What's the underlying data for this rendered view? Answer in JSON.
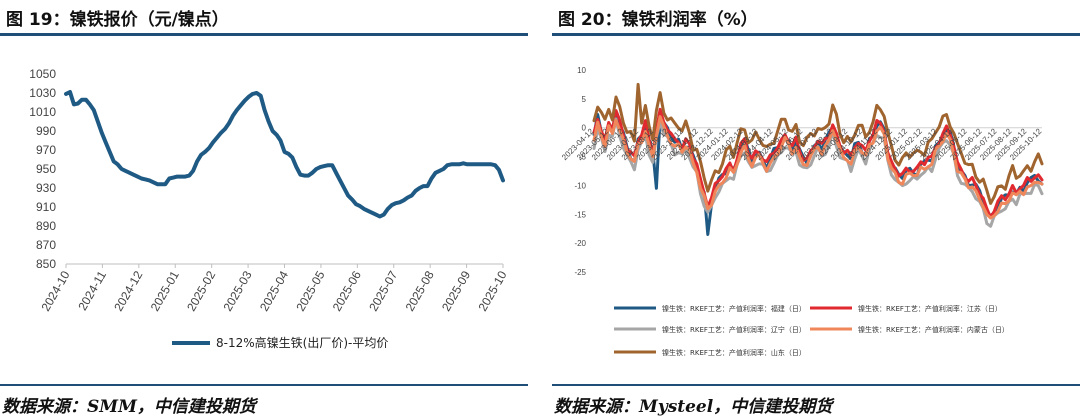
{
  "left": {
    "title": "图 19：镍铁报价（元/镍点）",
    "source": "数据来源：SMM，中信建投期货",
    "chart_data": {
      "type": "line",
      "ylim": [
        850,
        1050
      ],
      "yticks": [
        "1050",
        "1030",
        "1010",
        "990",
        "970",
        "950",
        "930",
        "910",
        "890",
        "870",
        "850"
      ],
      "xticks": [
        "2024-10",
        "2024-11",
        "2024-12",
        "2025-01",
        "2025-02",
        "2025-03",
        "2025-04",
        "2025-05",
        "2025-06",
        "2025-07",
        "2025-08",
        "2025-09",
        "2025-10"
      ],
      "series": [
        {
          "name": "8-12%高镍生铁(出厂价)-平均价",
          "color": "#1f5a85",
          "values": [
            1029,
            1031,
            1018,
            1019,
            1023,
            1023,
            1018,
            1012,
            1000,
            988,
            978,
            968,
            958,
            955,
            950,
            948,
            946,
            944,
            942,
            940,
            939,
            938,
            936,
            934,
            934,
            934,
            940,
            941,
            942,
            942,
            942,
            943,
            948,
            958,
            965,
            968,
            972,
            978,
            983,
            988,
            992,
            998,
            1006,
            1012,
            1017,
            1022,
            1026,
            1029,
            1030,
            1027,
            1012,
            1000,
            990,
            986,
            980,
            968,
            966,
            962,
            952,
            944,
            943,
            943,
            946,
            950,
            952,
            953,
            954,
            954,
            946,
            938,
            930,
            922,
            918,
            913,
            911,
            908,
            906,
            904,
            902,
            900,
            902,
            908,
            912,
            914,
            915,
            917,
            920,
            922,
            927,
            930,
            932,
            932,
            940,
            946,
            948,
            950,
            954,
            955,
            955,
            955,
            956,
            955,
            955,
            955,
            955,
            955,
            955,
            955,
            954,
            949,
            938
          ]
        }
      ]
    }
  },
  "right": {
    "title": "图 20：镍铁利润率（%）",
    "source": "数据来源：Mysteel，中信建投期货",
    "chart_data": {
      "type": "line",
      "ylim": [
        -25,
        10
      ],
      "yticks": [
        "10",
        "5",
        "0",
        "-5",
        "-10",
        "-15",
        "-20",
        "-25"
      ],
      "xticks": [
        "2023-04-12",
        "2023-05-12",
        "2023-06-12",
        "2023-07-12",
        "2023-08-12",
        "2023-09-12",
        "2023-10-12",
        "2023-11-12",
        "2023-12-12",
        "2024-01-12",
        "2024-02-12",
        "2024-03-12",
        "2024-04-12",
        "2024-05-12",
        "2024-06-12",
        "2024-07-12",
        "2024-08-12",
        "2024-09-12",
        "2024-10-12",
        "2024-11-12",
        "2024-12-12",
        "2025-01-12",
        "2025-02-12",
        "2025-03-12",
        "2025-04-12",
        "2025-05-12",
        "2025-06-12",
        "2025-07-12",
        "2025-08-12",
        "2025-09-12",
        "2025-10-12"
      ],
      "base_curve": [
        0,
        3,
        1,
        -1,
        2,
        1,
        4,
        2,
        0,
        -2,
        -3,
        -4,
        -1,
        0,
        2,
        -1,
        -3,
        1,
        4,
        2,
        1,
        0,
        -1,
        -1,
        -2,
        -1,
        -2,
        -4,
        -5,
        -8,
        -10,
        -12,
        -11,
        -9,
        -8,
        -7,
        -6,
        -5,
        -6,
        -4,
        -2,
        -1,
        -3,
        -4,
        -3,
        -3,
        -4,
        -5,
        -4,
        -3,
        -2,
        -1,
        0,
        -1,
        -2,
        -1,
        -3,
        -4,
        -4,
        -3,
        -2,
        -1,
        -2,
        -1,
        0,
        2,
        0,
        -2,
        -3,
        -3,
        -4,
        -2,
        -1,
        -2,
        -3,
        -1,
        0,
        2,
        2,
        1,
        -3,
        -5,
        -6,
        -7,
        -7,
        -6,
        -6,
        -6,
        -6,
        -5,
        -5,
        -4,
        -4,
        -2,
        -1,
        0,
        1,
        0,
        -2,
        -5,
        -6,
        -7,
        -8,
        -8,
        -9,
        -10,
        -11,
        -13,
        -14,
        -13,
        -12,
        -11,
        -11,
        -10,
        -9,
        -10,
        -9,
        -9,
        -8,
        -8,
        -7,
        -7,
        -8
      ],
      "series": [
        {
          "name": "镍生铁：RKEF工艺：产值利润率：福建（日）",
          "color": "#1f5a85",
          "offset": -1.5,
          "noise": 0.6
        },
        {
          "name": "镍生铁：RKEF工艺：产值利润率：江苏（日）",
          "color": "#e02a2f",
          "offset": -1.2,
          "noise": 0.4
        },
        {
          "name": "镍生铁：RKEF工艺：产值利润率：辽宁（日）",
          "color": "#a6a6a6",
          "offset": -3.0,
          "noise": 0.5
        },
        {
          "name": "镍生铁：RKEF工艺：产值利润率：内蒙古（日）",
          "color": "#f0875a",
          "offset": -2.2,
          "noise": 0.4
        },
        {
          "name": "镍生铁：RKEF工艺：产值利润率：山东（日）",
          "color": "#a0642e",
          "offset": 1.3,
          "noise": 0.8
        }
      ]
    }
  }
}
